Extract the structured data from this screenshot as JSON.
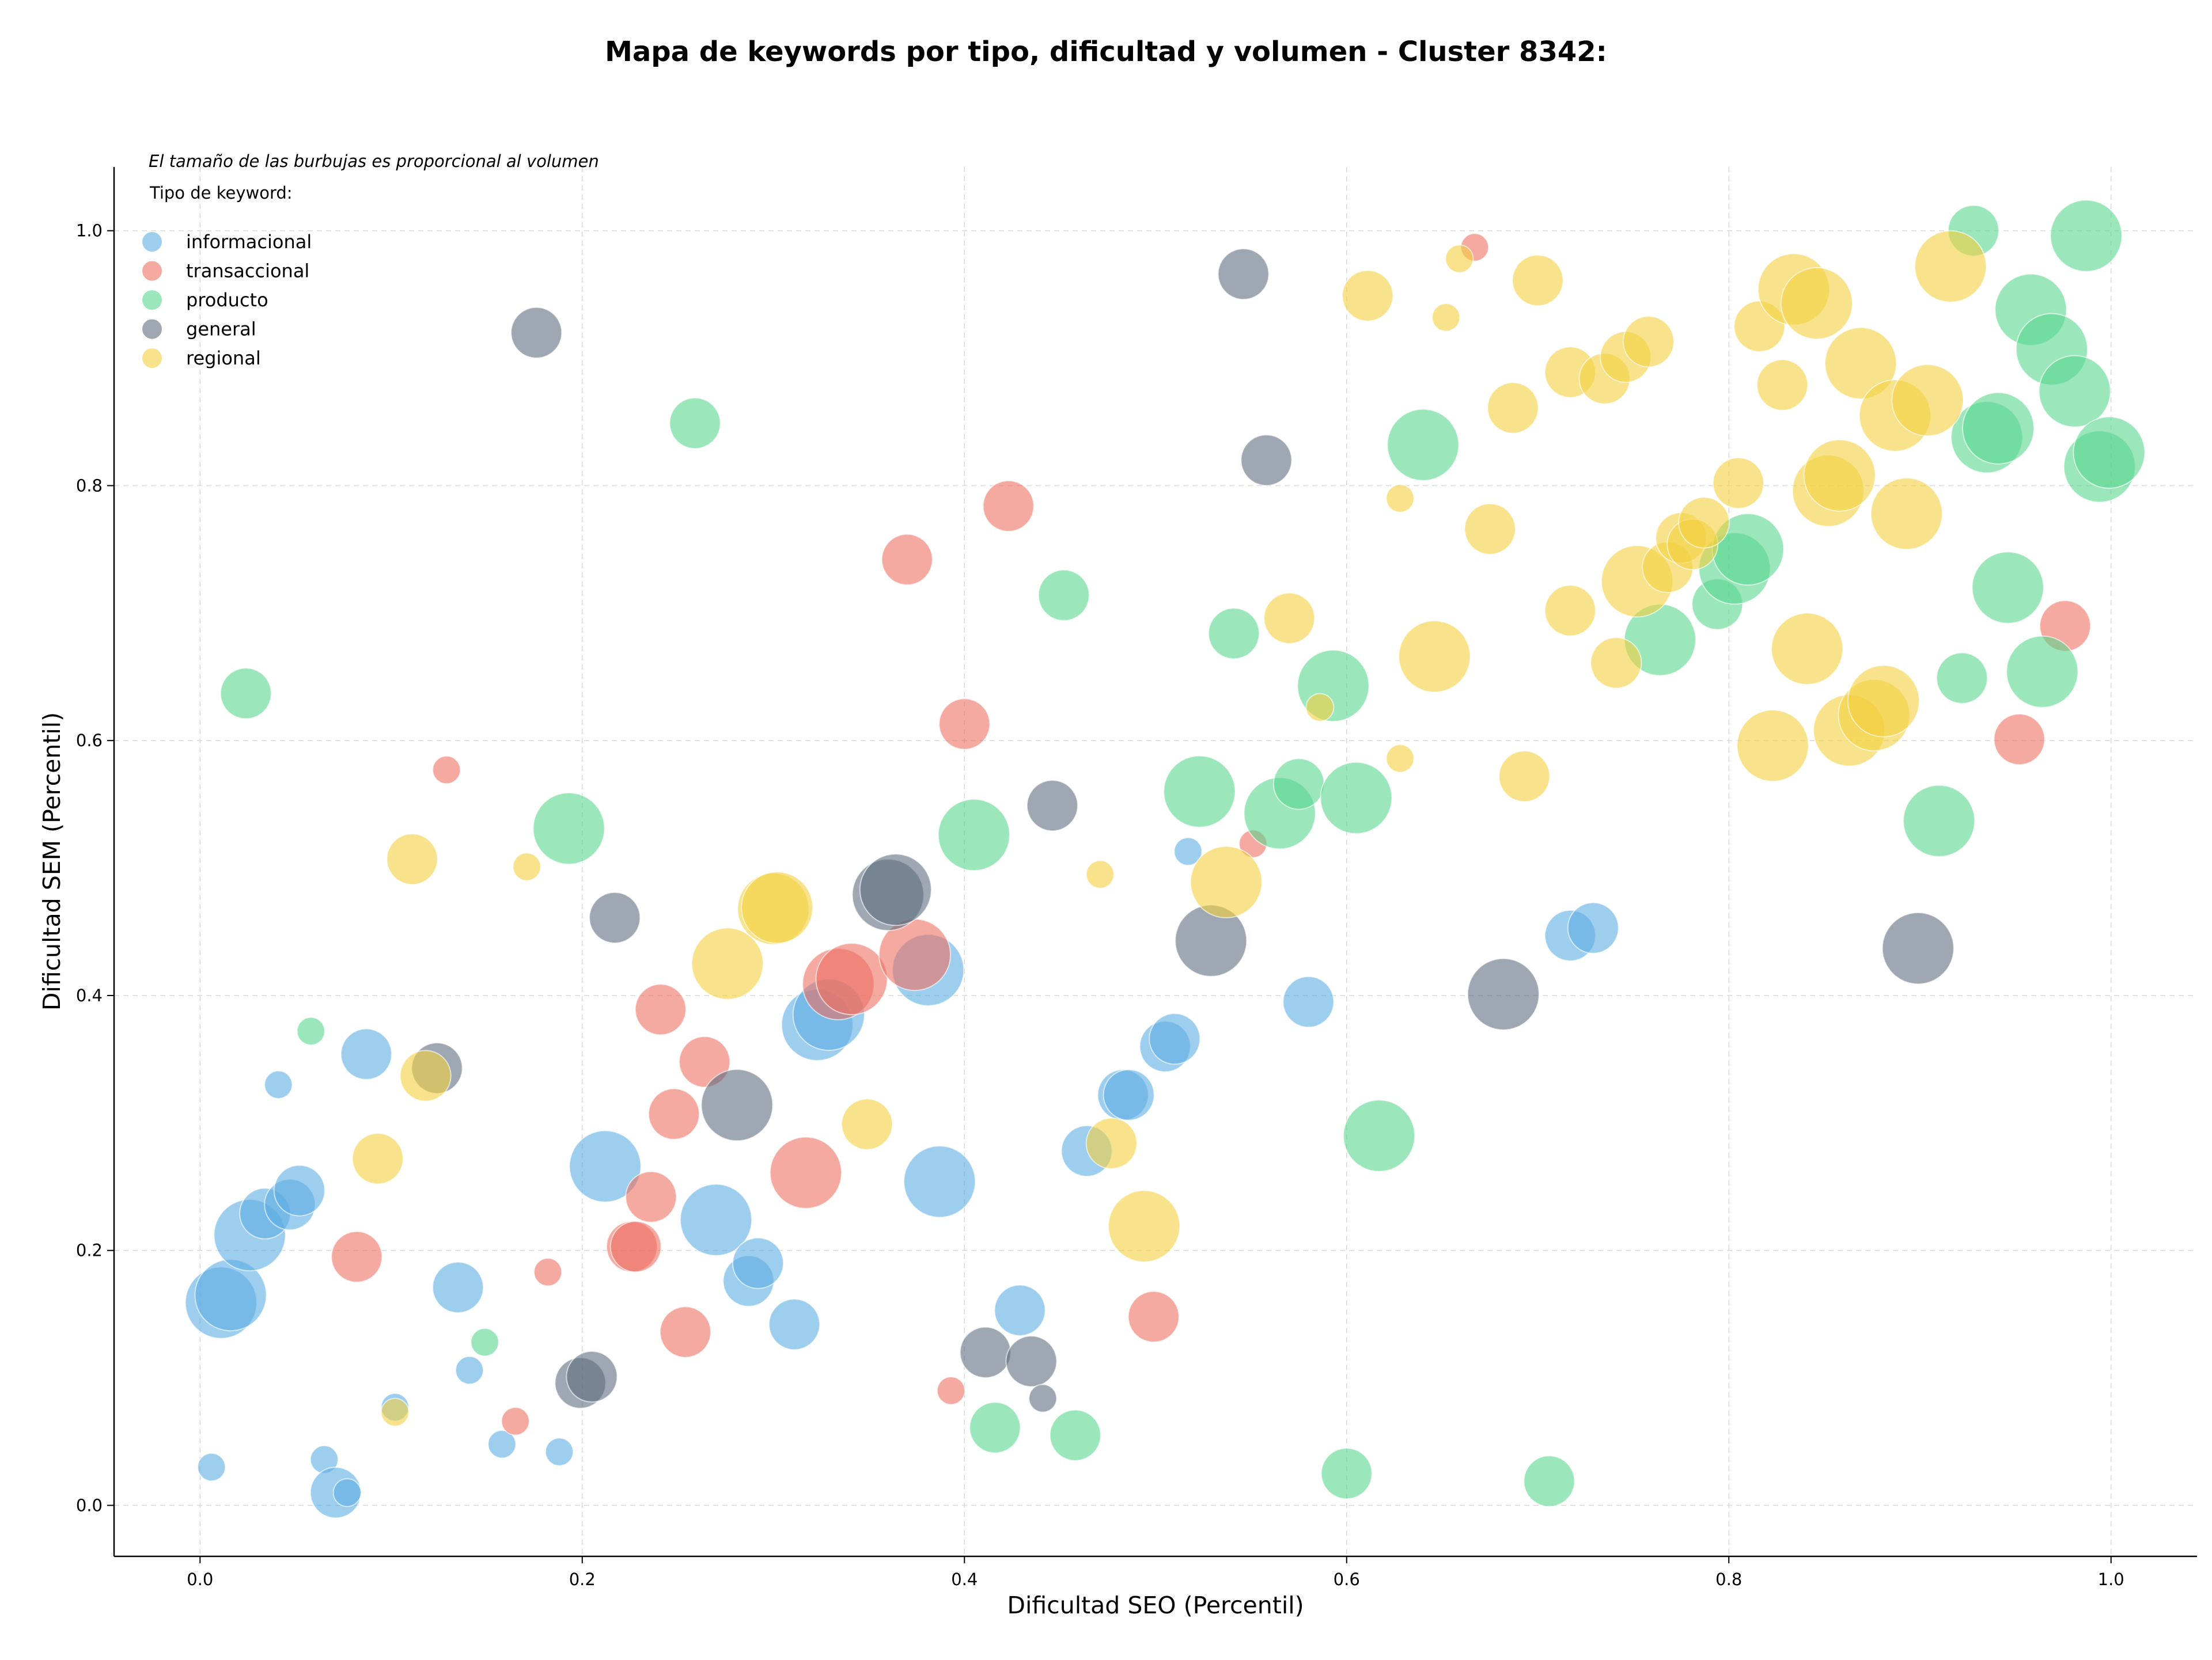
{
  "chart_data": {
    "type": "scatter",
    "title": "Mapa de keywords por tipo, dificultad y volumen - Cluster 8342:",
    "xlabel": "Dificultad SEO (Percentil)",
    "ylabel": "Dificultad SEM (Percentil)",
    "xlim": [
      -0.045,
      1.045
    ],
    "ylim": [
      -0.04,
      1.05
    ],
    "xticks": [
      "0.0",
      "0.2",
      "0.4",
      "0.6",
      "0.8",
      "1.0"
    ],
    "yticks": [
      "0.0",
      "0.2",
      "0.4",
      "0.6",
      "0.8",
      "1.0"
    ],
    "grid": true,
    "legend_placement": "top-left",
    "legend_note": "El tamaño de las burbujas es proporcional al volumen",
    "legend_title": "Tipo de keyword:",
    "series": [
      {
        "name": "informacional",
        "color": "#5dade2",
        "points": [
          [
            0.011,
            0.159,
            3
          ],
          [
            0.016,
            0.165,
            3
          ],
          [
            0.026,
            0.212,
            3
          ],
          [
            0.034,
            0.229,
            2
          ],
          [
            0.047,
            0.236,
            2
          ],
          [
            0.052,
            0.247,
            2
          ],
          [
            0.006,
            0.03,
            1
          ],
          [
            0.041,
            0.33,
            1
          ],
          [
            0.065,
            0.036,
            1
          ],
          [
            0.071,
            0.01,
            2
          ],
          [
            0.077,
            0.01,
            1
          ],
          [
            0.087,
            0.354,
            2
          ],
          [
            0.102,
            0.077,
            1
          ],
          [
            0.135,
            0.171,
            2
          ],
          [
            0.141,
            0.106,
            1
          ],
          [
            0.158,
            0.048,
            1
          ],
          [
            0.188,
            0.042,
            1
          ],
          [
            0.212,
            0.266,
            3
          ],
          [
            0.27,
            0.224,
            3
          ],
          [
            0.287,
            0.176,
            2
          ],
          [
            0.292,
            0.19,
            2
          ],
          [
            0.311,
            0.142,
            2
          ],
          [
            0.323,
            0.377,
            3
          ],
          [
            0.329,
            0.385,
            3
          ],
          [
            0.381,
            0.42,
            3
          ],
          [
            0.387,
            0.254,
            3
          ],
          [
            0.429,
            0.153,
            2
          ],
          [
            0.464,
            0.278,
            2
          ],
          [
            0.483,
            0.322,
            2
          ],
          [
            0.486,
            0.322,
            2
          ],
          [
            0.505,
            0.36,
            2
          ],
          [
            0.51,
            0.366,
            2
          ],
          [
            0.517,
            0.513,
            1
          ],
          [
            0.58,
            0.395,
            2
          ],
          [
            0.717,
            0.447,
            2
          ],
          [
            0.729,
            0.453,
            2
          ]
        ]
      },
      {
        "name": "transaccional",
        "color": "#ec7063",
        "points": [
          [
            0.082,
            0.195,
            2
          ],
          [
            0.129,
            0.577,
            1
          ],
          [
            0.165,
            0.066,
            1
          ],
          [
            0.182,
            0.183,
            1
          ],
          [
            0.226,
            0.203,
            2
          ],
          [
            0.228,
            0.203,
            2
          ],
          [
            0.236,
            0.242,
            2
          ],
          [
            0.241,
            0.389,
            2
          ],
          [
            0.248,
            0.307,
            2
          ],
          [
            0.254,
            0.136,
            2
          ],
          [
            0.264,
            0.348,
            2
          ],
          [
            0.317,
            0.261,
            3
          ],
          [
            0.334,
            0.409,
            3
          ],
          [
            0.341,
            0.413,
            3
          ],
          [
            0.37,
            0.742,
            2
          ],
          [
            0.374,
            0.432,
            3
          ],
          [
            0.393,
            0.09,
            1
          ],
          [
            0.4,
            0.613,
            2
          ],
          [
            0.423,
            0.784,
            2
          ],
          [
            0.499,
            0.148,
            2
          ],
          [
            0.551,
            0.519,
            1
          ],
          [
            0.667,
            0.987,
            1
          ],
          [
            0.952,
            0.601,
            2
          ],
          [
            0.976,
            0.69,
            2
          ]
        ]
      },
      {
        "name": "producto",
        "color": "#58d68d",
        "points": [
          [
            0.024,
            0.637,
            2
          ],
          [
            0.058,
            0.372,
            1
          ],
          [
            0.149,
            0.128,
            1
          ],
          [
            0.193,
            0.531,
            3
          ],
          [
            0.259,
            0.849,
            2
          ],
          [
            0.405,
            0.526,
            3
          ],
          [
            0.416,
            0.061,
            2
          ],
          [
            0.452,
            0.714,
            2
          ],
          [
            0.458,
            0.055,
            2
          ],
          [
            0.523,
            0.56,
            3
          ],
          [
            0.541,
            0.684,
            2
          ],
          [
            0.565,
            0.543,
            3
          ],
          [
            0.575,
            0.566,
            2
          ],
          [
            0.593,
            0.643,
            3
          ],
          [
            0.6,
            0.025,
            2
          ],
          [
            0.605,
            0.555,
            3
          ],
          [
            0.617,
            0.29,
            3
          ],
          [
            0.64,
            0.832,
            3
          ],
          [
            0.706,
            0.019,
            2
          ],
          [
            0.764,
            0.679,
            3
          ],
          [
            0.794,
            0.707,
            2
          ],
          [
            0.803,
            0.735,
            3
          ],
          [
            0.81,
            0.75,
            3
          ],
          [
            0.91,
            0.537,
            3
          ],
          [
            0.922,
            0.649,
            2
          ],
          [
            0.928,
            1.0,
            2
          ],
          [
            0.935,
            0.838,
            3
          ],
          [
            0.941,
            0.845,
            3
          ],
          [
            0.946,
            0.72,
            3
          ],
          [
            0.958,
            0.938,
            3
          ],
          [
            0.964,
            0.654,
            3
          ],
          [
            0.969,
            0.907,
            3
          ],
          [
            0.981,
            0.874,
            3
          ],
          [
            0.987,
            0.996,
            3
          ],
          [
            0.994,
            0.815,
            3
          ],
          [
            0.999,
            0.826,
            3
          ]
        ]
      },
      {
        "name": "general",
        "color": "#5d6d7e",
        "points": [
          [
            0.124,
            0.343,
            2
          ],
          [
            0.176,
            0.92,
            2
          ],
          [
            0.199,
            0.096,
            2
          ],
          [
            0.205,
            0.101,
            2
          ],
          [
            0.217,
            0.461,
            2
          ],
          [
            0.281,
            0.314,
            3
          ],
          [
            0.36,
            0.479,
            3
          ],
          [
            0.364,
            0.483,
            3
          ],
          [
            0.411,
            0.12,
            2
          ],
          [
            0.435,
            0.113,
            2
          ],
          [
            0.441,
            0.084,
            1
          ],
          [
            0.446,
            0.549,
            2
          ],
          [
            0.529,
            0.443,
            3
          ],
          [
            0.546,
            0.966,
            2
          ],
          [
            0.558,
            0.82,
            2
          ],
          [
            0.682,
            0.401,
            3
          ],
          [
            0.899,
            0.437,
            3
          ]
        ]
      },
      {
        "name": "regional",
        "color": "#f4d03f",
        "points": [
          [
            0.102,
            0.073,
            1
          ],
          [
            0.093,
            0.272,
            2
          ],
          [
            0.111,
            0.507,
            2
          ],
          [
            0.118,
            0.337,
            2
          ],
          [
            0.171,
            0.501,
            1
          ],
          [
            0.276,
            0.425,
            3
          ],
          [
            0.3,
            0.468,
            3
          ],
          [
            0.302,
            0.469,
            3
          ],
          [
            0.349,
            0.299,
            2
          ],
          [
            0.471,
            0.495,
            1
          ],
          [
            0.477,
            0.284,
            2
          ],
          [
            0.494,
            0.219,
            3
          ],
          [
            0.537,
            0.489,
            3
          ],
          [
            0.57,
            0.696,
            2
          ],
          [
            0.586,
            0.626,
            1
          ],
          [
            0.611,
            0.949,
            2
          ],
          [
            0.628,
            0.586,
            1
          ],
          [
            0.628,
            0.79,
            1
          ],
          [
            0.646,
            0.666,
            3
          ],
          [
            0.652,
            0.932,
            1
          ],
          [
            0.659,
            0.978,
            1
          ],
          [
            0.675,
            0.766,
            2
          ],
          [
            0.687,
            0.861,
            2
          ],
          [
            0.693,
            0.572,
            2
          ],
          [
            0.7,
            0.961,
            2
          ],
          [
            0.717,
            0.702,
            2
          ],
          [
            0.717,
            0.889,
            2
          ],
          [
            0.735,
            0.884,
            2
          ],
          [
            0.741,
            0.661,
            2
          ],
          [
            0.746,
            0.901,
            2
          ],
          [
            0.752,
            0.725,
            3
          ],
          [
            0.758,
            0.913,
            2
          ],
          [
            0.768,
            0.736,
            2
          ],
          [
            0.775,
            0.759,
            2
          ],
          [
            0.781,
            0.754,
            2
          ],
          [
            0.787,
            0.771,
            2
          ],
          [
            0.805,
            0.802,
            2
          ],
          [
            0.816,
            0.925,
            2
          ],
          [
            0.823,
            0.596,
            3
          ],
          [
            0.828,
            0.879,
            2
          ],
          [
            0.834,
            0.954,
            3
          ],
          [
            0.841,
            0.672,
            3
          ],
          [
            0.846,
            0.943,
            3
          ],
          [
            0.852,
            0.796,
            3
          ],
          [
            0.858,
            0.808,
            3
          ],
          [
            0.863,
            0.608,
            3
          ],
          [
            0.869,
            0.896,
            3
          ],
          [
            0.876,
            0.62,
            3
          ],
          [
            0.881,
            0.631,
            3
          ],
          [
            0.887,
            0.855,
            3
          ],
          [
            0.893,
            0.778,
            3
          ],
          [
            0.904,
            0.867,
            3
          ],
          [
            0.916,
            0.972,
            3
          ]
        ]
      }
    ]
  }
}
